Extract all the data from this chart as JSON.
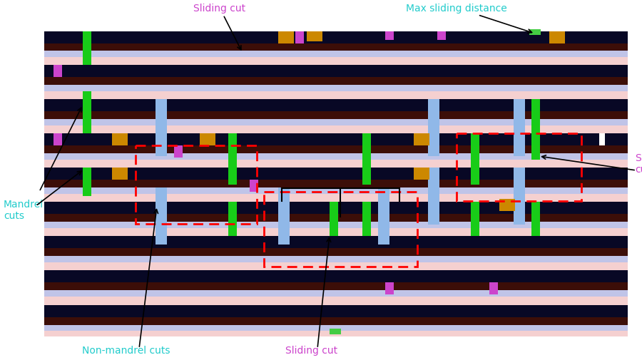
{
  "fig_width": 9.0,
  "fig_height": 5.06,
  "bg_color": "#ffffff",
  "colors": {
    "navy": "#080825",
    "brown": "#3c0e08",
    "lavender": "#c0c4e8",
    "pink": "#f5d0d0",
    "light_blue": "#90b8e8",
    "green": "#18cc18",
    "orange": "#cc8800",
    "purple": "#cc44cc",
    "white": "#ffffff",
    "red": "#ff0000"
  },
  "label_sliding_top": "Sliding cut",
  "label_sliding_top_color": "#cc44cc",
  "label_max_sliding": "Max sliding distance",
  "label_max_sliding_color": "#22cccc",
  "label_sliding_right": "Sliding\ncut",
  "label_sliding_right_color": "#cc44cc",
  "label_mandrel": "Mandrel\ncuts",
  "label_mandrel_color": "#22cccc",
  "label_nonmandrel": "Non-mandrel cuts",
  "label_nonmandrel_color": "#22cccc",
  "label_sliding_bot": "Sliding cut",
  "label_sliding_bot_color": "#cc44cc"
}
